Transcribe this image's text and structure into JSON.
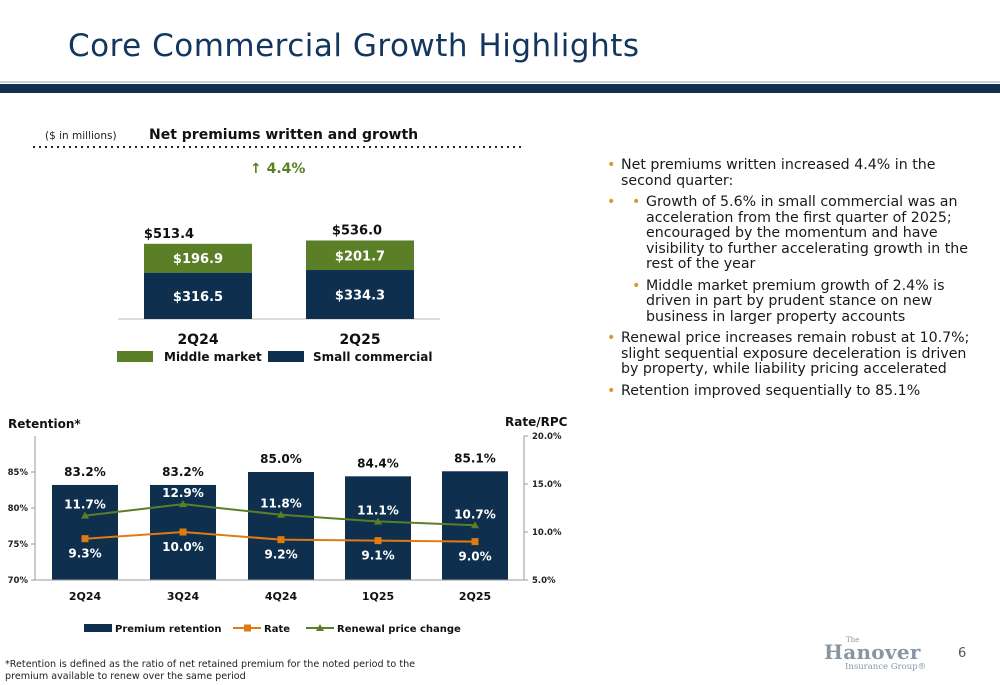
{
  "slide": {
    "title": "Core Commercial Growth Highlights",
    "page_number": "6",
    "footnote": "*Retention is defined as the ratio of net retained premium for the noted period to the premium available to renew over the same period"
  },
  "logo": {
    "the": "The",
    "name": "Hanover",
    "sub": "Insurance Group®"
  },
  "colors": {
    "navy": "#0e2f4d",
    "green": "#5b7f27",
    "orange": "#e07b12",
    "bullet": "#e2922f"
  },
  "bullets": {
    "items": [
      {
        "text": "Net premiums written increased 4.4% in the second quarter:"
      },
      {
        "text": "Growth of 5.6% in small commercial was an acceleration from the first quarter of 2025; encouraged by the momentum and have visibility to further accelerating growth in the rest of the year"
      },
      {
        "text": "Middle market premium growth of 2.4% is driven in part by prudent stance on new business in larger property accounts"
      },
      {
        "text": "Renewal price increases remain robust at 10.7%; slight sequential exposure deceleration is driven by property, while liability pricing accelerated"
      },
      {
        "text": "Retention improved sequentially to 85.1%"
      }
    ]
  },
  "chart_data": [
    {
      "type": "bar",
      "stacked": true,
      "title": "Net premiums written and growth",
      "subtitle": "($ in millions)",
      "categories": [
        "2Q24",
        "2Q25"
      ],
      "series": [
        {
          "name": "Small commercial",
          "values": [
            316.5,
            334.3
          ],
          "labels": [
            "$316.5",
            "$334.3"
          ],
          "color": "#0e2f4d"
        },
        {
          "name": "Middle market",
          "values": [
            196.9,
            201.7
          ],
          "labels": [
            "$196.9",
            "$201.7"
          ],
          "color": "#5b7f27"
        }
      ],
      "totals": [
        "$513.4",
        "$536.0"
      ],
      "growth_annotation": "↑ 4.4%",
      "legend": [
        "Middle market",
        "Small commercial"
      ],
      "legend_position": "bottom"
    },
    {
      "type": "bar",
      "combo": "bar-line",
      "categories": [
        "2Q24",
        "3Q24",
        "4Q24",
        "1Q25",
        "2Q25"
      ],
      "left_axis": {
        "label": "Retention*",
        "range": [
          70,
          90
        ],
        "ticks": [
          "70%",
          "75%",
          "80%",
          "85%"
        ]
      },
      "right_axis": {
        "label": "Rate/RPC",
        "range": [
          5,
          20
        ],
        "ticks": [
          "5.0%",
          "10.0%",
          "15.0%",
          "20.0%"
        ]
      },
      "series": [
        {
          "name": "Premium retention",
          "type": "bar",
          "axis": "left",
          "values": [
            83.2,
            83.2,
            85.0,
            84.4,
            85.1
          ],
          "labels": [
            "83.2%",
            "83.2%",
            "85.0%",
            "84.4%",
            "85.1%"
          ],
          "color": "#0e2f4d"
        },
        {
          "name": "Rate",
          "type": "line",
          "axis": "right",
          "marker": "square",
          "values": [
            9.3,
            10.0,
            9.2,
            9.1,
            9.0
          ],
          "labels": [
            "9.3%",
            "10.0%",
            "9.2%",
            "9.1%",
            "9.0%"
          ],
          "color": "#e07b12"
        },
        {
          "name": "Renewal price change",
          "type": "line",
          "axis": "right",
          "marker": "triangle",
          "values": [
            11.7,
            12.9,
            11.8,
            11.1,
            10.7
          ],
          "labels": [
            "11.7%",
            "12.9%",
            "11.8%",
            "11.1%",
            "10.7%"
          ],
          "color": "#5b7f27"
        }
      ],
      "legend_position": "bottom"
    }
  ]
}
